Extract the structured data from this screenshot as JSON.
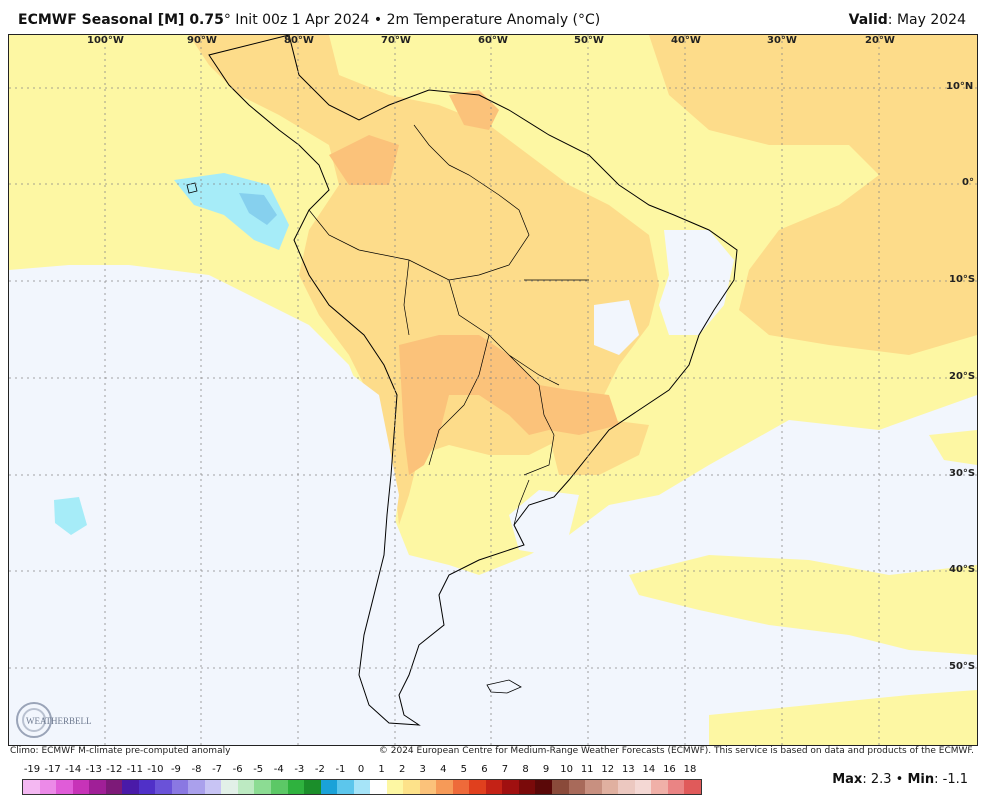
{
  "header": {
    "title_bold": "ECMWF Seasonal [M] 0.75",
    "title_rest": "° Init 00z 1 Apr 2024 • 2m Temperature Anomaly (°C)",
    "valid_label": "Valid",
    "valid_value": ": May 2024"
  },
  "map": {
    "lon_labels": [
      "100°W",
      "90°W",
      "80°W",
      "70°W",
      "60°W",
      "50°W",
      "40°W",
      "30°W",
      "20°W"
    ],
    "lat_labels": [
      "10°N",
      "0°",
      "10°S",
      "20°S",
      "30°S",
      "40°S",
      "50°S"
    ],
    "colors": {
      "neutral": "#f2f6fd",
      "light_yellow": "#fdf7a3",
      "light_orange": "#fddc8a",
      "orange": "#fbc27a",
      "cyan": "#a6ecf8",
      "blue": "#86d0ee"
    }
  },
  "logo": {
    "text": "WEATHERBELL"
  },
  "credits": {
    "left": "Climo: ECMWF M-climate pre-computed anomaly",
    "right": "© 2024 European Centre for Medium-Range Weather Forecasts (ECMWF). This service is based on data and products of the ECMWF."
  },
  "scale": {
    "ticks": [
      "-19",
      "-17",
      "-14",
      "-13",
      "-12",
      "-11",
      "-10",
      "-9",
      "-8",
      "-7",
      "-6",
      "-5",
      "-4",
      "-3",
      "-2",
      "-1",
      "0",
      "1",
      "2",
      "3",
      "4",
      "5",
      "6",
      "7",
      "8",
      "9",
      "10",
      "11",
      "12",
      "13",
      "14",
      "16",
      "18"
    ],
    "colors": [
      "#f4b8f2",
      "#ec8ae8",
      "#e05cd8",
      "#c733b8",
      "#a01f97",
      "#7d1a78",
      "#4a1aa8",
      "#5030c8",
      "#6a52d8",
      "#8a78e2",
      "#aaa0ec",
      "#c8c4f4",
      "#e2f0e8",
      "#bdeac2",
      "#8cdc93",
      "#5cc866",
      "#2fb23e",
      "#1b8e2a",
      "#1aa2d8",
      "#5cc6ec",
      "#a6e4f8",
      "#ffffff",
      "#fdf7a3",
      "#fde28a",
      "#fbc27a",
      "#f69a58",
      "#ee6a3a",
      "#e0401e",
      "#c42216",
      "#a01010",
      "#7a0a0a",
      "#5a0808",
      "#8a4a3a",
      "#a86a5a",
      "#c89080",
      "#e0b0a0",
      "#ecc8c0",
      "#f4d8d4",
      "#f0b0a8",
      "#ea8484",
      "#e05a5a"
    ]
  },
  "stats": {
    "max_label": "Max",
    "max_value": ": 2.3 • ",
    "min_label": "Min",
    "min_value": ": -1.1"
  }
}
